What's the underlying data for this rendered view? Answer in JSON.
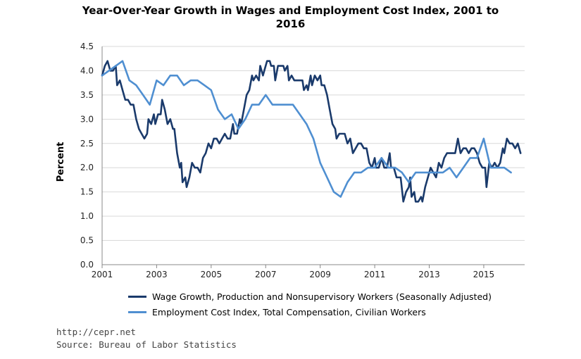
{
  "chart_data": {
    "type": "line",
    "title_line1": "Year-Over-Year Growth in Wages and Employment Cost Index, 2001 to",
    "title_line2": "2016",
    "ylabel": "Percent",
    "xlabel": "",
    "xlim": [
      2001,
      2016.5
    ],
    "ylim": [
      0,
      4.5
    ],
    "x_ticks": [
      "2001",
      "2003",
      "2005",
      "2007",
      "2009",
      "2011",
      "2013",
      "2015"
    ],
    "y_ticks": [
      "0.0",
      "0.5",
      "1.0",
      "1.5",
      "2.0",
      "2.5",
      "3.0",
      "3.5",
      "4.0",
      "4.5"
    ],
    "grid": "horizontal",
    "legend_position": "bottom",
    "series": [
      {
        "name": "Wage Growth, Production and Nonsupervisory Workers (Seasonally Adjusted)",
        "color": "#1a3a6b",
        "points": [
          [
            2001.0,
            3.9
          ],
          [
            2001.1,
            4.1
          ],
          [
            2001.2,
            4.2
          ],
          [
            2001.3,
            4.0
          ],
          [
            2001.4,
            4.0
          ],
          [
            2001.5,
            4.1
          ],
          [
            2001.55,
            3.7
          ],
          [
            2001.65,
            3.8
          ],
          [
            2001.75,
            3.6
          ],
          [
            2001.85,
            3.4
          ],
          [
            2001.95,
            3.4
          ],
          [
            2002.05,
            3.3
          ],
          [
            2002.15,
            3.3
          ],
          [
            2002.25,
            3.0
          ],
          [
            2002.35,
            2.8
          ],
          [
            2002.45,
            2.7
          ],
          [
            2002.55,
            2.6
          ],
          [
            2002.65,
            2.7
          ],
          [
            2002.7,
            3.0
          ],
          [
            2002.8,
            2.9
          ],
          [
            2002.9,
            3.1
          ],
          [
            2002.95,
            2.9
          ],
          [
            2003.05,
            3.1
          ],
          [
            2003.15,
            3.1
          ],
          [
            2003.2,
            3.4
          ],
          [
            2003.3,
            3.2
          ],
          [
            2003.4,
            2.9
          ],
          [
            2003.5,
            3.0
          ],
          [
            2003.6,
            2.8
          ],
          [
            2003.65,
            2.8
          ],
          [
            2003.75,
            2.3
          ],
          [
            2003.85,
            2.0
          ],
          [
            2003.9,
            2.1
          ],
          [
            2003.95,
            1.7
          ],
          [
            2004.05,
            1.8
          ],
          [
            2004.1,
            1.6
          ],
          [
            2004.2,
            1.8
          ],
          [
            2004.3,
            2.1
          ],
          [
            2004.4,
            2.0
          ],
          [
            2004.5,
            2.0
          ],
          [
            2004.6,
            1.9
          ],
          [
            2004.7,
            2.2
          ],
          [
            2004.8,
            2.3
          ],
          [
            2004.9,
            2.5
          ],
          [
            2005.0,
            2.4
          ],
          [
            2005.1,
            2.6
          ],
          [
            2005.2,
            2.6
          ],
          [
            2005.3,
            2.5
          ],
          [
            2005.4,
            2.6
          ],
          [
            2005.5,
            2.7
          ],
          [
            2005.6,
            2.6
          ],
          [
            2005.7,
            2.6
          ],
          [
            2005.8,
            2.9
          ],
          [
            2005.85,
            2.7
          ],
          [
            2005.95,
            2.7
          ],
          [
            2006.05,
            3.0
          ],
          [
            2006.1,
            2.9
          ],
          [
            2006.2,
            3.2
          ],
          [
            2006.3,
            3.5
          ],
          [
            2006.4,
            3.6
          ],
          [
            2006.5,
            3.9
          ],
          [
            2006.55,
            3.8
          ],
          [
            2006.65,
            3.9
          ],
          [
            2006.75,
            3.8
          ],
          [
            2006.8,
            4.1
          ],
          [
            2006.9,
            3.9
          ],
          [
            2006.95,
            4.0
          ],
          [
            2007.05,
            4.2
          ],
          [
            2007.15,
            4.2
          ],
          [
            2007.2,
            4.1
          ],
          [
            2007.3,
            4.1
          ],
          [
            2007.35,
            3.8
          ],
          [
            2007.45,
            4.1
          ],
          [
            2007.55,
            4.1
          ],
          [
            2007.65,
            4.1
          ],
          [
            2007.7,
            4.0
          ],
          [
            2007.8,
            4.1
          ],
          [
            2007.85,
            3.8
          ],
          [
            2007.95,
            3.9
          ],
          [
            2008.05,
            3.8
          ],
          [
            2008.2,
            3.8
          ],
          [
            2008.35,
            3.8
          ],
          [
            2008.4,
            3.6
          ],
          [
            2008.5,
            3.7
          ],
          [
            2008.55,
            3.6
          ],
          [
            2008.65,
            3.9
          ],
          [
            2008.7,
            3.7
          ],
          [
            2008.8,
            3.9
          ],
          [
            2008.9,
            3.8
          ],
          [
            2009.0,
            3.9
          ],
          [
            2009.05,
            3.7
          ],
          [
            2009.15,
            3.7
          ],
          [
            2009.25,
            3.5
          ],
          [
            2009.35,
            3.2
          ],
          [
            2009.45,
            2.9
          ],
          [
            2009.55,
            2.8
          ],
          [
            2009.6,
            2.6
          ],
          [
            2009.7,
            2.7
          ],
          [
            2009.8,
            2.7
          ],
          [
            2009.9,
            2.7
          ],
          [
            2010.0,
            2.5
          ],
          [
            2010.1,
            2.6
          ],
          [
            2010.2,
            2.3
          ],
          [
            2010.3,
            2.4
          ],
          [
            2010.4,
            2.5
          ],
          [
            2010.5,
            2.5
          ],
          [
            2010.6,
            2.4
          ],
          [
            2010.7,
            2.4
          ],
          [
            2010.8,
            2.1
          ],
          [
            2010.9,
            2.0
          ],
          [
            2011.0,
            2.2
          ],
          [
            2011.05,
            2.0
          ],
          [
            2011.15,
            2.0
          ],
          [
            2011.25,
            2.2
          ],
          [
            2011.35,
            2.0
          ],
          [
            2011.45,
            2.0
          ],
          [
            2011.55,
            2.3
          ],
          [
            2011.6,
            2.0
          ],
          [
            2011.7,
            2.0
          ],
          [
            2011.8,
            1.8
          ],
          [
            2011.9,
            1.8
          ],
          [
            2011.95,
            1.8
          ],
          [
            2012.05,
            1.3
          ],
          [
            2012.15,
            1.5
          ],
          [
            2012.25,
            1.6
          ],
          [
            2012.3,
            1.8
          ],
          [
            2012.35,
            1.4
          ],
          [
            2012.45,
            1.5
          ],
          [
            2012.5,
            1.3
          ],
          [
            2012.6,
            1.3
          ],
          [
            2012.7,
            1.4
          ],
          [
            2012.75,
            1.3
          ],
          [
            2012.85,
            1.6
          ],
          [
            2012.95,
            1.8
          ],
          [
            2013.05,
            2.0
          ],
          [
            2013.15,
            1.9
          ],
          [
            2013.25,
            1.8
          ],
          [
            2013.35,
            2.1
          ],
          [
            2013.45,
            2.0
          ],
          [
            2013.55,
            2.2
          ],
          [
            2013.65,
            2.3
          ],
          [
            2013.75,
            2.3
          ],
          [
            2013.85,
            2.3
          ],
          [
            2013.95,
            2.3
          ],
          [
            2014.05,
            2.6
          ],
          [
            2014.15,
            2.3
          ],
          [
            2014.25,
            2.4
          ],
          [
            2014.35,
            2.4
          ],
          [
            2014.45,
            2.3
          ],
          [
            2014.55,
            2.4
          ],
          [
            2014.65,
            2.4
          ],
          [
            2014.75,
            2.3
          ],
          [
            2014.85,
            2.1
          ],
          [
            2014.95,
            2.0
          ],
          [
            2015.05,
            2.0
          ],
          [
            2015.1,
            1.6
          ],
          [
            2015.2,
            2.1
          ],
          [
            2015.3,
            2.0
          ],
          [
            2015.4,
            2.1
          ],
          [
            2015.5,
            2.0
          ],
          [
            2015.6,
            2.1
          ],
          [
            2015.7,
            2.4
          ],
          [
            2015.75,
            2.3
          ],
          [
            2015.85,
            2.6
          ],
          [
            2015.95,
            2.5
          ],
          [
            2016.05,
            2.5
          ],
          [
            2016.15,
            2.4
          ],
          [
            2016.25,
            2.5
          ],
          [
            2016.35,
            2.3
          ]
        ]
      },
      {
        "name": "Employment Cost Index, Total Compensation, Civilian Workers",
        "color": "#4f8fd1",
        "points": [
          [
            2001.0,
            3.9
          ],
          [
            2001.25,
            4.0
          ],
          [
            2001.5,
            4.1
          ],
          [
            2001.75,
            4.2
          ],
          [
            2002.0,
            3.8
          ],
          [
            2002.25,
            3.7
          ],
          [
            2002.5,
            3.5
          ],
          [
            2002.75,
            3.3
          ],
          [
            2003.0,
            3.8
          ],
          [
            2003.25,
            3.7
          ],
          [
            2003.5,
            3.9
          ],
          [
            2003.75,
            3.9
          ],
          [
            2004.0,
            3.7
          ],
          [
            2004.25,
            3.8
          ],
          [
            2004.5,
            3.8
          ],
          [
            2004.75,
            3.7
          ],
          [
            2005.0,
            3.6
          ],
          [
            2005.25,
            3.2
          ],
          [
            2005.5,
            3.0
          ],
          [
            2005.75,
            3.1
          ],
          [
            2006.0,
            2.8
          ],
          [
            2006.25,
            3.0
          ],
          [
            2006.5,
            3.3
          ],
          [
            2006.75,
            3.3
          ],
          [
            2007.0,
            3.5
          ],
          [
            2007.25,
            3.3
          ],
          [
            2007.5,
            3.3
          ],
          [
            2007.75,
            3.3
          ],
          [
            2008.0,
            3.3
          ],
          [
            2008.25,
            3.1
          ],
          [
            2008.5,
            2.9
          ],
          [
            2008.75,
            2.6
          ],
          [
            2009.0,
            2.1
          ],
          [
            2009.25,
            1.8
          ],
          [
            2009.5,
            1.5
          ],
          [
            2009.75,
            1.4
          ],
          [
            2010.0,
            1.7
          ],
          [
            2010.25,
            1.9
          ],
          [
            2010.5,
            1.9
          ],
          [
            2010.75,
            2.0
          ],
          [
            2011.0,
            2.0
          ],
          [
            2011.25,
            2.2
          ],
          [
            2011.5,
            2.0
          ],
          [
            2011.75,
            2.0
          ],
          [
            2012.0,
            1.9
          ],
          [
            2012.25,
            1.7
          ],
          [
            2012.5,
            1.9
          ],
          [
            2012.75,
            1.9
          ],
          [
            2013.0,
            1.9
          ],
          [
            2013.25,
            1.9
          ],
          [
            2013.5,
            1.9
          ],
          [
            2013.75,
            2.0
          ],
          [
            2014.0,
            1.8
          ],
          [
            2014.25,
            2.0
          ],
          [
            2014.5,
            2.2
          ],
          [
            2014.75,
            2.2
          ],
          [
            2015.0,
            2.6
          ],
          [
            2015.25,
            2.0
          ],
          [
            2015.5,
            2.0
          ],
          [
            2015.75,
            2.0
          ],
          [
            2016.0,
            1.9
          ]
        ]
      }
    ],
    "source_url": "http://cepr.net",
    "source_note": "Source: Bureau of Labor Statistics"
  }
}
